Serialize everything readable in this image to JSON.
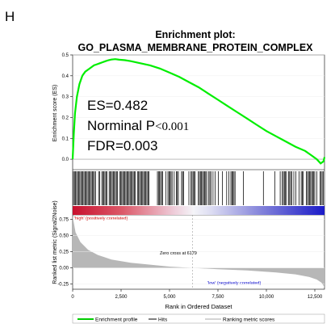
{
  "panel_label": "H",
  "chart_data": {
    "type": "line",
    "title": "Enrichment plot:",
    "subtitle": "GO_PLASMA_MEMBRANE_PROTEIN_COMPLEX",
    "xlabel": "Rank in Ordered Dataset",
    "xlim": [
      0,
      13000
    ],
    "x_ticks": [
      "0",
      "2,500",
      "5,000",
      "7,500",
      "10,000",
      "12,500"
    ],
    "top_panel": {
      "ylabel": "Enrichment score (ES)",
      "ylim": [
        -0.05,
        0.5
      ],
      "y_ticks": [
        "0.0",
        "0.1",
        "0.2",
        "0.3",
        "0.4",
        "0.5"
      ],
      "series": [
        {
          "name": "Enrichment profile",
          "color": "#00ee00",
          "x": [
            0,
            60,
            120,
            220,
            350,
            500,
            650,
            800,
            950,
            1100,
            1250,
            1400,
            1550,
            1700,
            1850,
            2000,
            2200,
            2400,
            2700,
            3000,
            3500,
            4000,
            4500,
            5000,
            5500,
            6000,
            6500,
            7000,
            7500,
            8000,
            8500,
            9000,
            9500,
            10000,
            10500,
            11000,
            11500,
            12000,
            12300,
            12600,
            12800,
            12950,
            13000
          ],
          "y": [
            0.0,
            0.12,
            0.22,
            0.3,
            0.36,
            0.4,
            0.42,
            0.43,
            0.44,
            0.45,
            0.455,
            0.46,
            0.465,
            0.47,
            0.475,
            0.478,
            0.48,
            0.477,
            0.475,
            0.47,
            0.46,
            0.45,
            0.435,
            0.415,
            0.395,
            0.37,
            0.345,
            0.315,
            0.285,
            0.255,
            0.225,
            0.195,
            0.165,
            0.135,
            0.11,
            0.085,
            0.06,
            0.04,
            0.02,
            0.0,
            -0.02,
            -0.01,
            0.01
          ]
        }
      ],
      "annotations": [
        {
          "label": "ES=0.482",
          "font": "sans"
        },
        {
          "label": "Norminal P",
          "value": "<0.001",
          "font": "mixed"
        },
        {
          "label": "FDR=0.003",
          "font": "sans"
        }
      ]
    },
    "bottom_panel": {
      "ylabel": "Ranked list metric (Signal2Noise)",
      "ylim": [
        -0.33,
        0.82
      ],
      "y_ticks": [
        "0.75",
        "0.50",
        "0.25",
        "0.00",
        "-0.25"
      ],
      "series": [
        {
          "name": "Ranking metric scores",
          "color": "#b0b0b0",
          "x": [
            0,
            150,
            400,
            800,
            1300,
            2000,
            3000,
            4000,
            5000,
            6179,
            7500,
            9000,
            10500,
            11500,
            12200,
            12600,
            12850,
            13000
          ],
          "y": [
            0.8,
            0.55,
            0.4,
            0.28,
            0.2,
            0.13,
            0.08,
            0.05,
            0.02,
            0.0,
            -0.02,
            -0.04,
            -0.07,
            -0.1,
            -0.14,
            -0.18,
            -0.23,
            -0.3
          ]
        }
      ],
      "annotations": [
        {
          "label": "Zero cross at 6179",
          "x": 6179
        },
        {
          "label": "'high' (positively correlated)",
          "color": "#cc0000"
        },
        {
          "label": "'low' (negatively correlated)",
          "color": "#0000cc"
        }
      ]
    },
    "legend": {
      "placement": "bottom",
      "items": [
        {
          "label": "Enrichment profile",
          "color": "#00cc00"
        },
        {
          "label": "Hits",
          "color": "#000000"
        },
        {
          "label": "Ranking metric scores",
          "color": "#aaaaaa"
        }
      ]
    }
  }
}
